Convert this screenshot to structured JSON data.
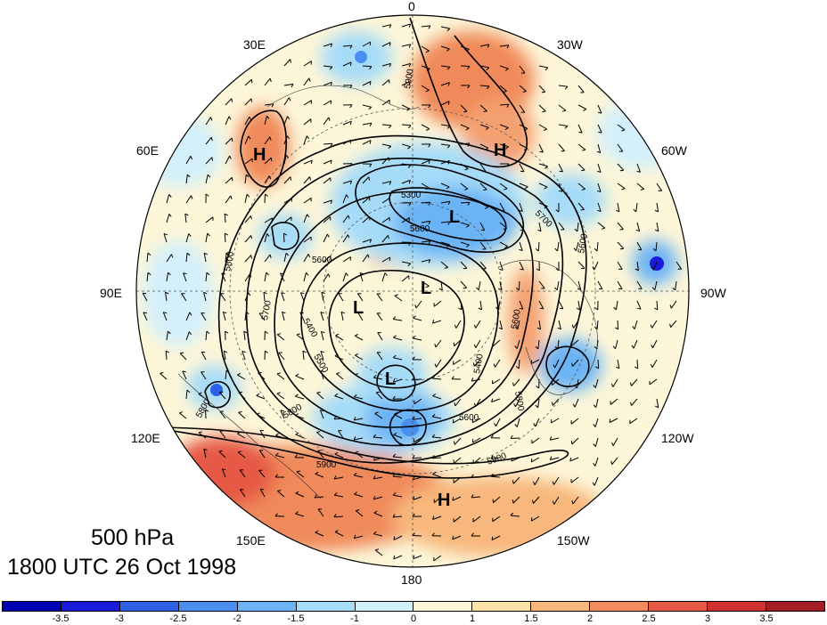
{
  "title": {
    "level": "500 hPa",
    "time": "1800 UTC 26 Oct 1998"
  },
  "map": {
    "projection": "north-polar-stereographic",
    "longitude_labels": [
      "0",
      "30W",
      "60W",
      "90W",
      "120W",
      "150W",
      "180",
      "150E",
      "120E",
      "90E",
      "60E",
      "30E"
    ],
    "highs": [
      "H",
      "H",
      "H"
    ],
    "lows": [
      "L",
      "L",
      "L",
      "L"
    ],
    "contour_labels": [
      "5900",
      "5300",
      "5700",
      "5600",
      "5800",
      "5600",
      "5700",
      "5400",
      "5500",
      "5600",
      "5900",
      "5800",
      "5900",
      "5600",
      "5400",
      "5800",
      "5600",
      "5800"
    ]
  },
  "colorbar": {
    "colors": [
      "#1a1ad9",
      "#2e60e8",
      "#4a8ff0",
      "#6bb3f5",
      "#a6dcf8",
      "#d3f0fb",
      "#fdf6d8",
      "#fbe3a7",
      "#f8b77c",
      "#f28c5c",
      "#e65a45",
      "#d0302e",
      "#a51d24"
    ],
    "tick_labels": [
      "-3.5",
      "-3",
      "-2.5",
      "-2",
      "-1.5",
      "-1",
      "0",
      "1",
      "1.5",
      "2",
      "2.5",
      "3",
      "3.5"
    ]
  }
}
